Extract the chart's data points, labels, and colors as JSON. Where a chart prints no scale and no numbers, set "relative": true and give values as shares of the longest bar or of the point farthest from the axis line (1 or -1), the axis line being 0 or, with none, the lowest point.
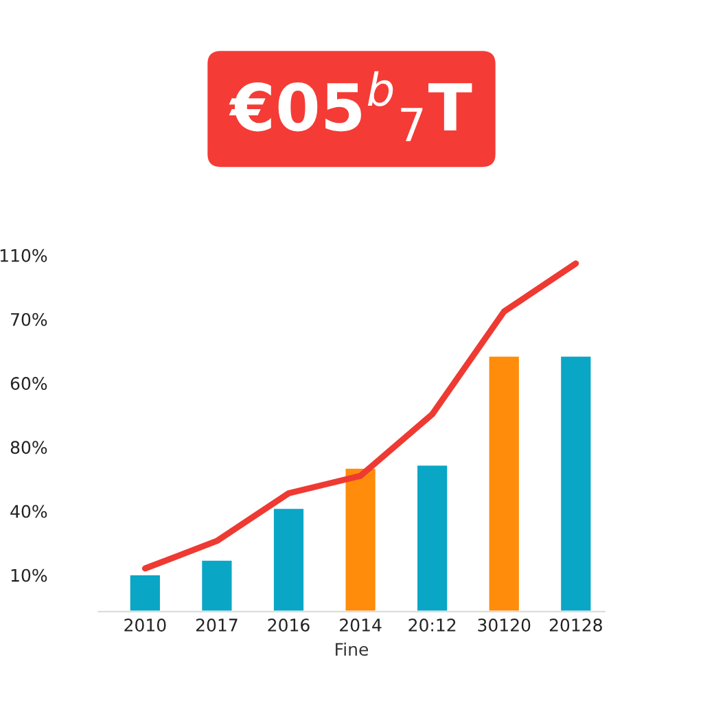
{
  "chart_data": {
    "type": "bar",
    "title": "€05$^{b}$$_{7}$T",
    "xlabel": "Fine",
    "relative": true,
    "categories": [
      "2010",
      "2017",
      "2016",
      "2014",
      "20:12",
      "30120",
      "20128"
    ],
    "series": [
      {
        "values": [
          0.107,
          0.149,
          0.298,
          0.413,
          0.422,
          0.735,
          0.735
        ],
        "colors": [
          "#0aa6c6",
          "#0aa6c6",
          "#0aa6c6",
          "#ff8c0a",
          "#0aa6c6",
          "#ff8c0a",
          "#0aa6c6"
        ]
      },
      {
        "type": "line",
        "color": "#ee3a32",
        "values": [
          0.124,
          0.203,
          0.34,
          0.39,
          0.567,
          0.862,
          1
        ]
      }
    ],
    "annotations": [
      "10%",
      "40%",
      "80%",
      "60%",
      "70%",
      "110%"
    ]
  }
}
